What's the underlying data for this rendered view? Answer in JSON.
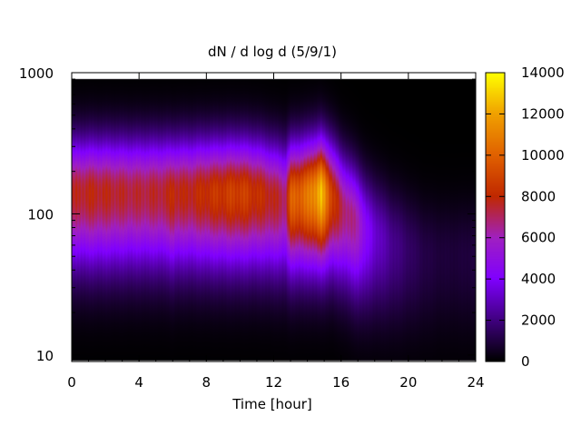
{
  "chart_data": {
    "type": "heatmap",
    "title": "dN / d log d (5/9/1)",
    "xlabel": "Time [hour]",
    "ylabel": "",
    "x_range": [
      0,
      24
    ],
    "y_range": [
      9,
      1000
    ],
    "y_scale": "log",
    "x_ticks": [
      0,
      4,
      8,
      12,
      16,
      20,
      24
    ],
    "x_tick_labels": [
      "0",
      "4",
      "8",
      "12",
      "16",
      "20",
      "24"
    ],
    "y_ticks": [
      10,
      100,
      1000
    ],
    "y_tick_labels": [
      "10",
      "100",
      "1000"
    ],
    "colorbar": {
      "range": [
        0,
        14000
      ],
      "ticks": [
        0,
        2000,
        4000,
        6000,
        8000,
        10000,
        12000,
        14000
      ],
      "tick_labels": [
        "0",
        "2000",
        "4000",
        "6000",
        "8000",
        "10000",
        "12000",
        "14000"
      ],
      "colormap": [
        "#000000",
        "#400080",
        "#8000ff",
        "#a020c0",
        "#c02800",
        "#e06000",
        "#f0a000",
        "#ffff00"
      ]
    },
    "data_extent": {
      "x": [
        0,
        24
      ],
      "y": [
        9.2,
        900
      ]
    },
    "time_hours": [
      0,
      1,
      2,
      3,
      4,
      5,
      5.7,
      6,
      6.3,
      7,
      8,
      9,
      10,
      11,
      12,
      12.7,
      13,
      14,
      14.8,
      15.5,
      16,
      17,
      17.5,
      18,
      19,
      20,
      21,
      22,
      23,
      24
    ],
    "series": [
      {
        "peak_diameter": 140,
        "peak_value": 7500
      }
    ],
    "profile": {
      "time_hours": [
        0,
        1,
        2,
        3,
        4,
        5,
        5.7,
        6,
        6.3,
        7,
        8,
        9,
        10,
        11,
        12,
        12.7,
        13,
        14,
        14.8,
        15.5,
        16,
        17,
        17.5,
        18,
        19,
        20,
        21,
        22,
        23,
        24
      ],
      "peak_diameter": [
        140,
        140,
        140,
        140,
        140,
        140,
        140,
        135,
        140,
        140,
        140,
        140,
        140,
        138,
        130,
        125,
        130,
        135,
        140,
        130,
        110,
        85,
        75,
        70,
        60,
        55,
        50,
        50,
        50,
        50
      ],
      "peak_value": [
        7500,
        7800,
        7700,
        7500,
        7400,
        7500,
        7600,
        8300,
        7800,
        7800,
        8300,
        8600,
        8900,
        8300,
        7700,
        7000,
        9800,
        10500,
        12600,
        8800,
        7200,
        6200,
        4300,
        3400,
        2300,
        1600,
        1100,
        900,
        900,
        1000
      ]
    },
    "missing_region": "upper right, above ~500-900 nm after hour 19"
  }
}
